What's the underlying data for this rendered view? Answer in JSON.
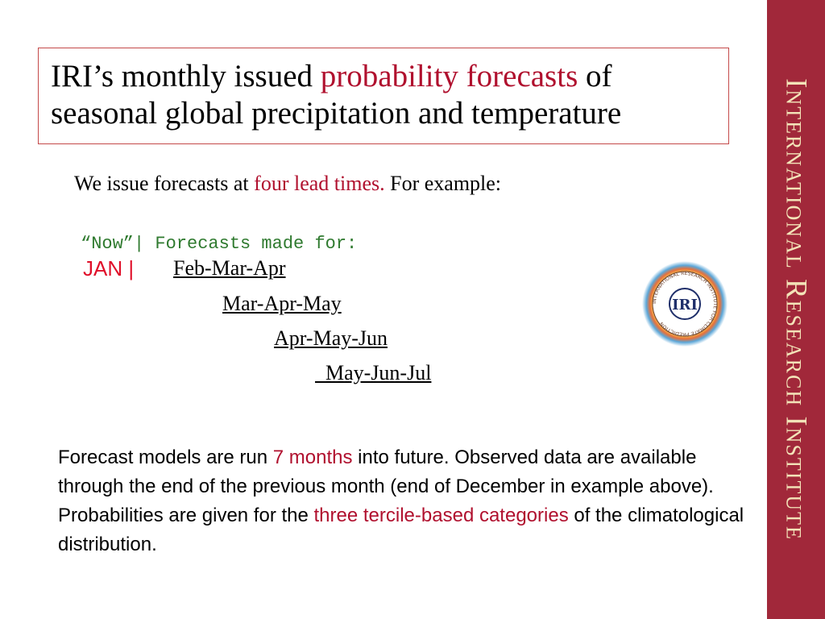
{
  "sidebar": {
    "text": "International Research Institute"
  },
  "title": {
    "part1": "IRI’s monthly issued ",
    "highlight": "probability forecasts",
    "part2": " of",
    "line2": "seasonal global precipitation and temperature"
  },
  "lead": {
    "part1": "We issue forecasts at ",
    "highlight": "four lead times.",
    "part2": " For example:"
  },
  "forecast": {
    "now_label": "“Now”| Forecasts made for:",
    "month": "JAN |",
    "seasons": [
      "Feb-Mar-Apr",
      "Mar-Apr-May",
      "Apr-May-Jun",
      "May-Jun-Jul"
    ]
  },
  "logo": {
    "text": "IRI",
    "ring_text": "INTERNATIONAL RESEARCH INSTITUTE FOR CLIMATE PREDICTION"
  },
  "paragraph": {
    "p1": "Forecast models are run ",
    "h1": "7 months",
    "p2": " into future. Observed data are available through the end of the previous month (end of December in example above). Probabilities are given for the ",
    "h2": "three tercile-based categories",
    "p3": " of the climatological distribution."
  },
  "colors": {
    "accent": "#b0102e",
    "band": "#a1283a",
    "band_text": "#f3e3b8",
    "mono_green": "#2f7a2f"
  }
}
